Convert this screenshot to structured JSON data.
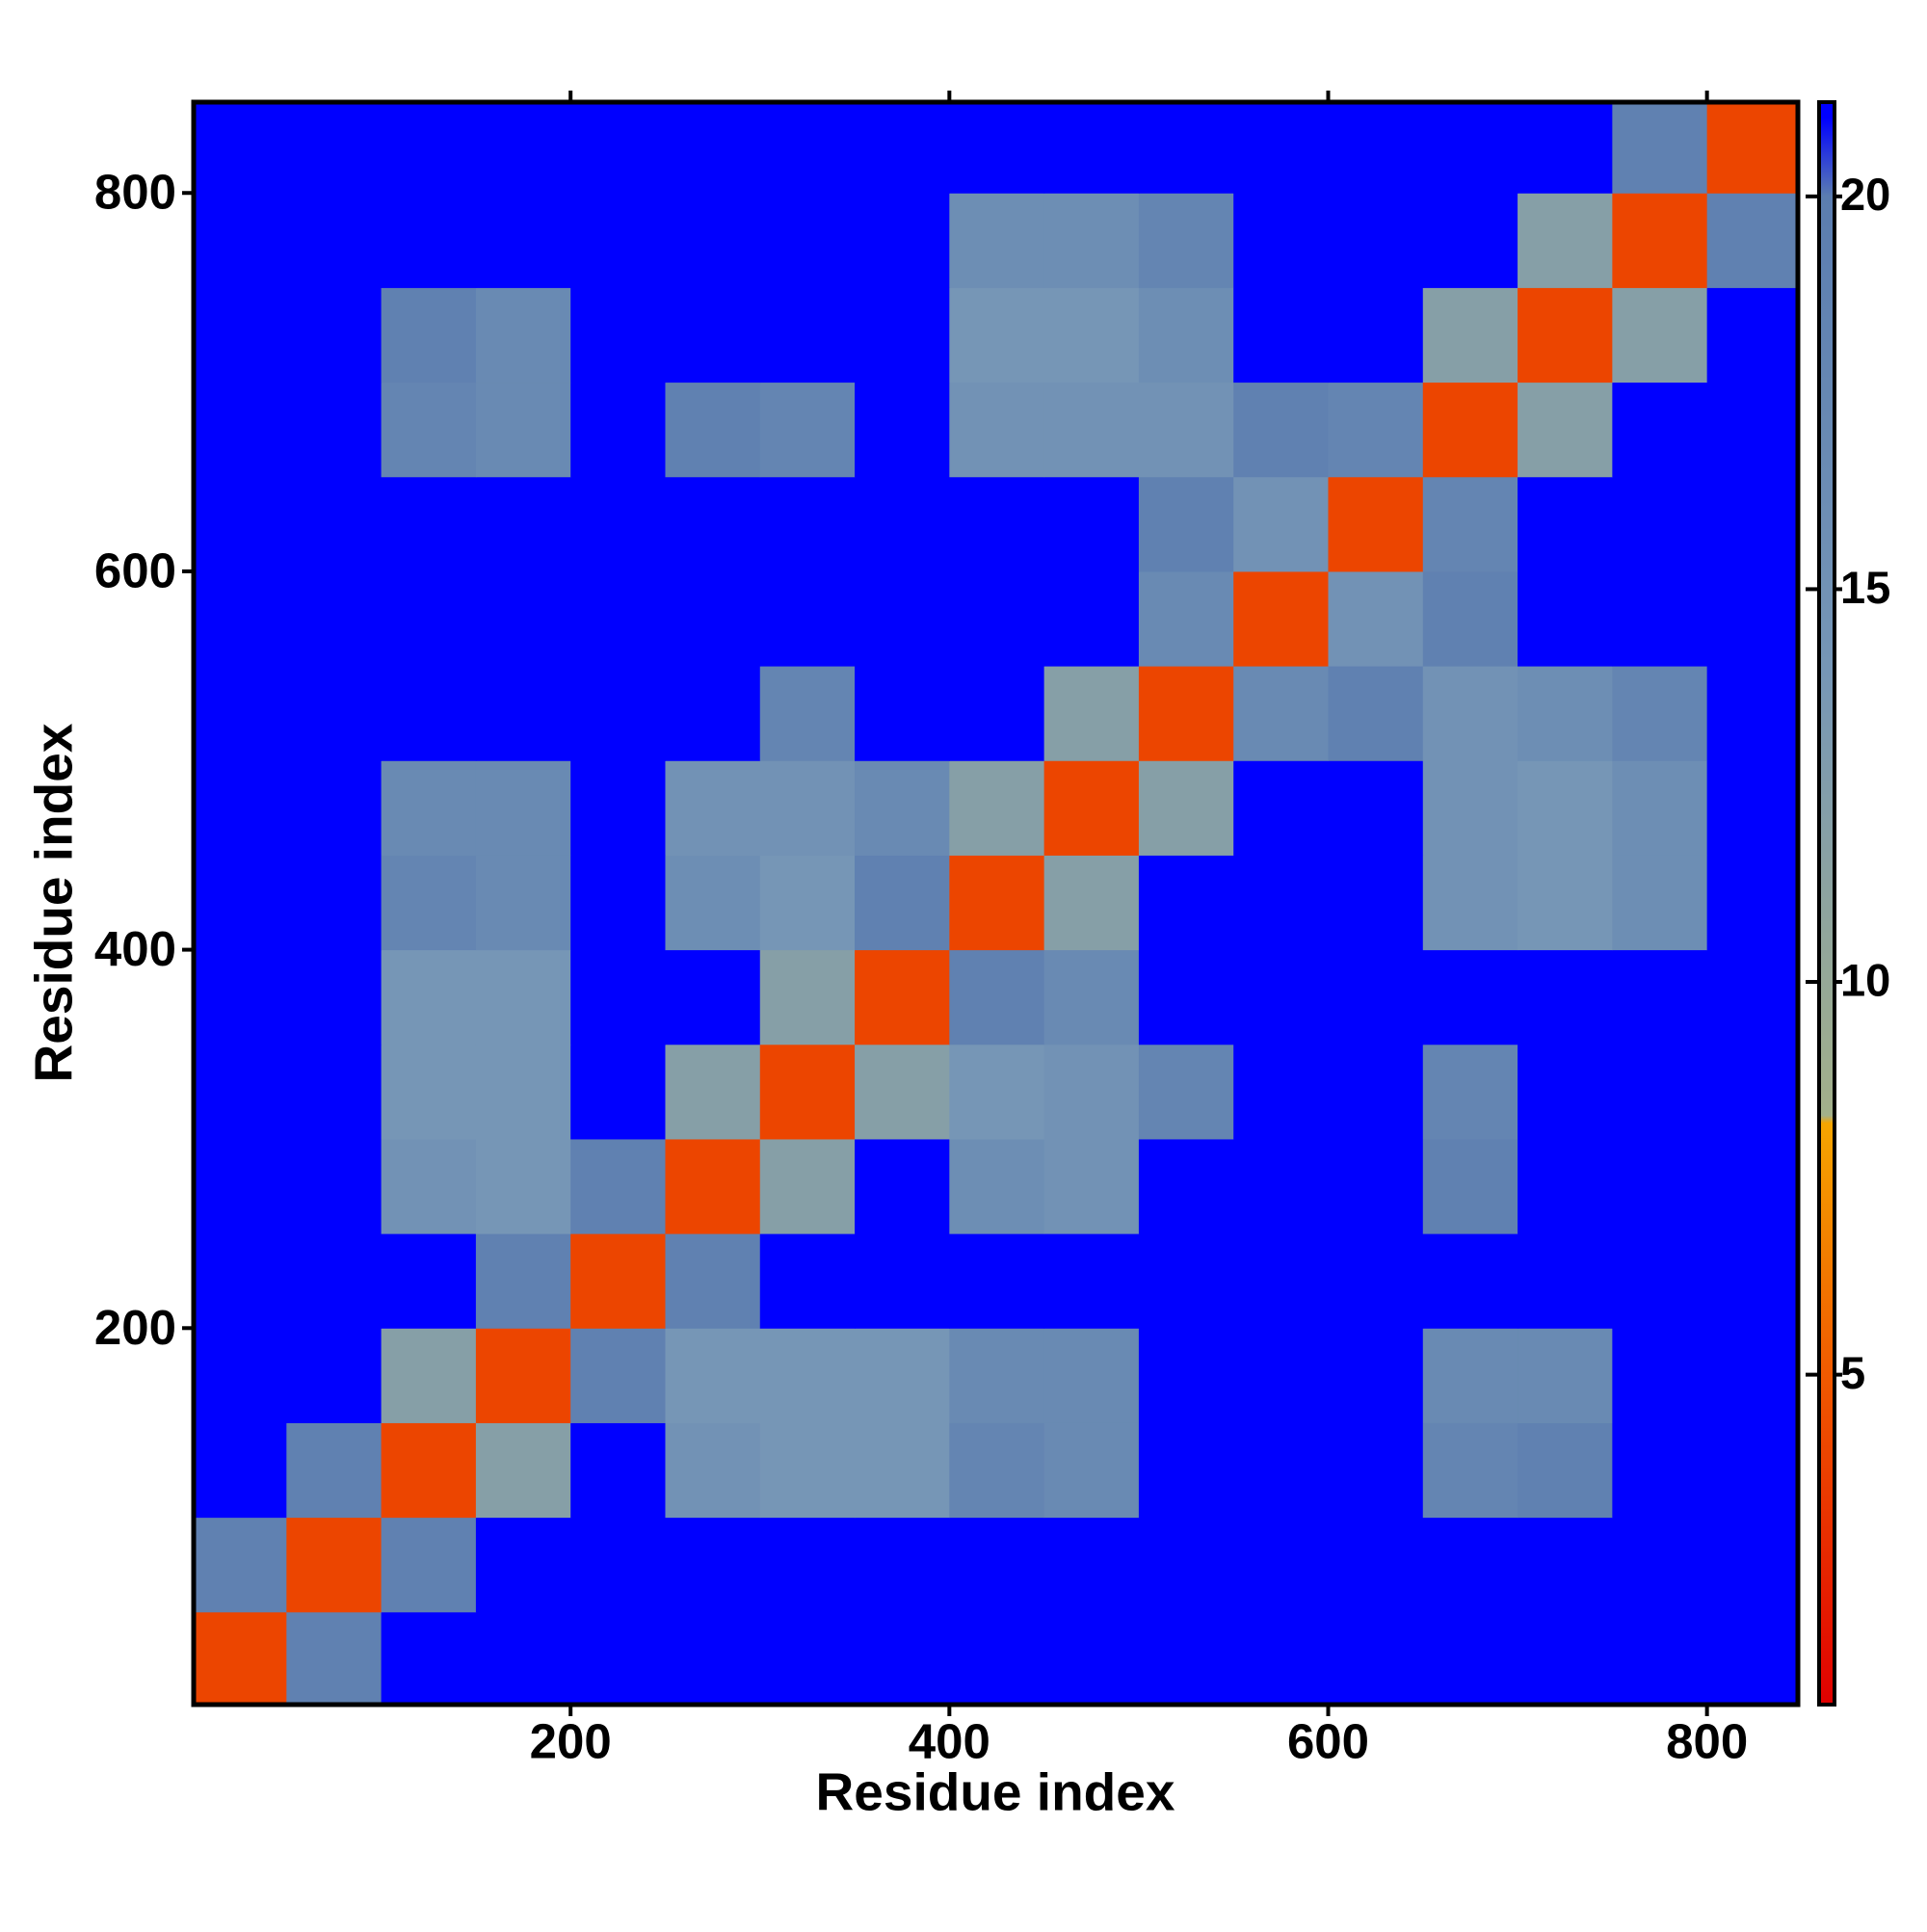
{
  "chart_data": {
    "type": "heatmap",
    "x_label": "Residue index",
    "y_label": "Residue index",
    "xbins": [
      1,
      50,
      100,
      150,
      200,
      250,
      300,
      350,
      400,
      450,
      500,
      550,
      600,
      650,
      700,
      750,
      800,
      848
    ],
    "ybins": [
      1,
      50,
      100,
      150,
      200,
      250,
      300,
      350,
      400,
      450,
      500,
      550,
      600,
      650,
      700,
      750,
      800,
      848
    ],
    "z": [
      [
        4,
        19,
        21,
        21,
        21,
        21,
        21,
        21,
        21,
        21,
        21,
        21,
        21,
        21,
        21,
        21,
        21
      ],
      [
        19,
        4,
        19,
        21,
        21,
        21,
        21,
        21,
        21,
        21,
        21,
        21,
        21,
        21,
        21,
        21,
        21
      ],
      [
        21,
        19,
        4,
        12,
        21,
        15,
        14,
        14,
        18,
        17,
        21,
        21,
        21,
        18,
        19,
        21,
        21
      ],
      [
        21,
        21,
        12,
        4,
        19,
        14,
        14,
        14,
        17,
        17,
        21,
        21,
        21,
        17,
        17,
        21,
        21
      ],
      [
        21,
        21,
        21,
        19,
        4,
        19,
        21,
        21,
        21,
        21,
        21,
        21,
        21,
        21,
        21,
        21,
        21
      ],
      [
        21,
        21,
        15,
        14,
        19,
        4,
        12,
        21,
        16,
        15,
        21,
        21,
        21,
        19,
        21,
        21,
        21
      ],
      [
        21,
        21,
        14,
        14,
        21,
        12,
        4,
        12,
        14,
        15,
        18,
        21,
        21,
        18,
        21,
        21,
        21
      ],
      [
        21,
        21,
        14,
        14,
        21,
        21,
        12,
        4,
        19,
        17,
        21,
        21,
        21,
        21,
        21,
        21,
        21
      ],
      [
        21,
        21,
        18,
        17,
        21,
        16,
        14,
        19,
        4,
        12,
        21,
        21,
        21,
        15,
        14,
        16,
        21
      ],
      [
        21,
        21,
        17,
        17,
        21,
        15,
        15,
        17,
        12,
        4,
        12,
        21,
        21,
        15,
        14,
        16,
        21
      ],
      [
        21,
        21,
        21,
        21,
        21,
        21,
        18,
        21,
        21,
        12,
        4,
        17,
        19,
        15,
        16,
        18,
        21
      ],
      [
        21,
        21,
        21,
        21,
        21,
        21,
        21,
        21,
        21,
        21,
        17,
        4,
        15,
        19,
        21,
        21,
        21
      ],
      [
        21,
        21,
        21,
        21,
        21,
        21,
        21,
        21,
        21,
        21,
        19,
        15,
        4,
        18,
        21,
        21,
        21
      ],
      [
        21,
        21,
        18,
        17,
        21,
        19,
        18,
        21,
        15,
        15,
        15,
        19,
        18,
        4,
        12,
        21,
        21
      ],
      [
        21,
        21,
        19,
        17,
        21,
        21,
        21,
        21,
        14,
        14,
        16,
        21,
        21,
        12,
        4,
        12,
        21
      ],
      [
        21,
        21,
        21,
        21,
        21,
        21,
        21,
        21,
        16,
        16,
        18,
        21,
        21,
        21,
        12,
        4,
        19
      ],
      [
        21,
        21,
        21,
        21,
        21,
        21,
        21,
        21,
        21,
        21,
        21,
        21,
        21,
        21,
        21,
        19,
        4
      ]
    ],
    "xlim": [
      1,
      848
    ],
    "ylim": [
      1,
      848
    ],
    "xticks": [
      200,
      400,
      600,
      800
    ],
    "yticks": [
      200,
      400,
      600,
      800
    ],
    "clim": [
      0.8,
      21.2
    ],
    "cticks": [
      5,
      10,
      15,
      20
    ],
    "colorscale": [
      {
        "value": 0.8,
        "color": "#e00000"
      },
      {
        "value": 5,
        "color": "#f05a00"
      },
      {
        "value": 8.2,
        "color": "#f5a500"
      },
      {
        "value": 8.3,
        "color": "#a3b08a"
      },
      {
        "value": 14,
        "color": "#7696b6"
      },
      {
        "value": 20,
        "color": "#5b7db0"
      },
      {
        "value": 21,
        "color": "#0000ff"
      },
      {
        "value": 21.2,
        "color": "#0000ff"
      }
    ]
  }
}
